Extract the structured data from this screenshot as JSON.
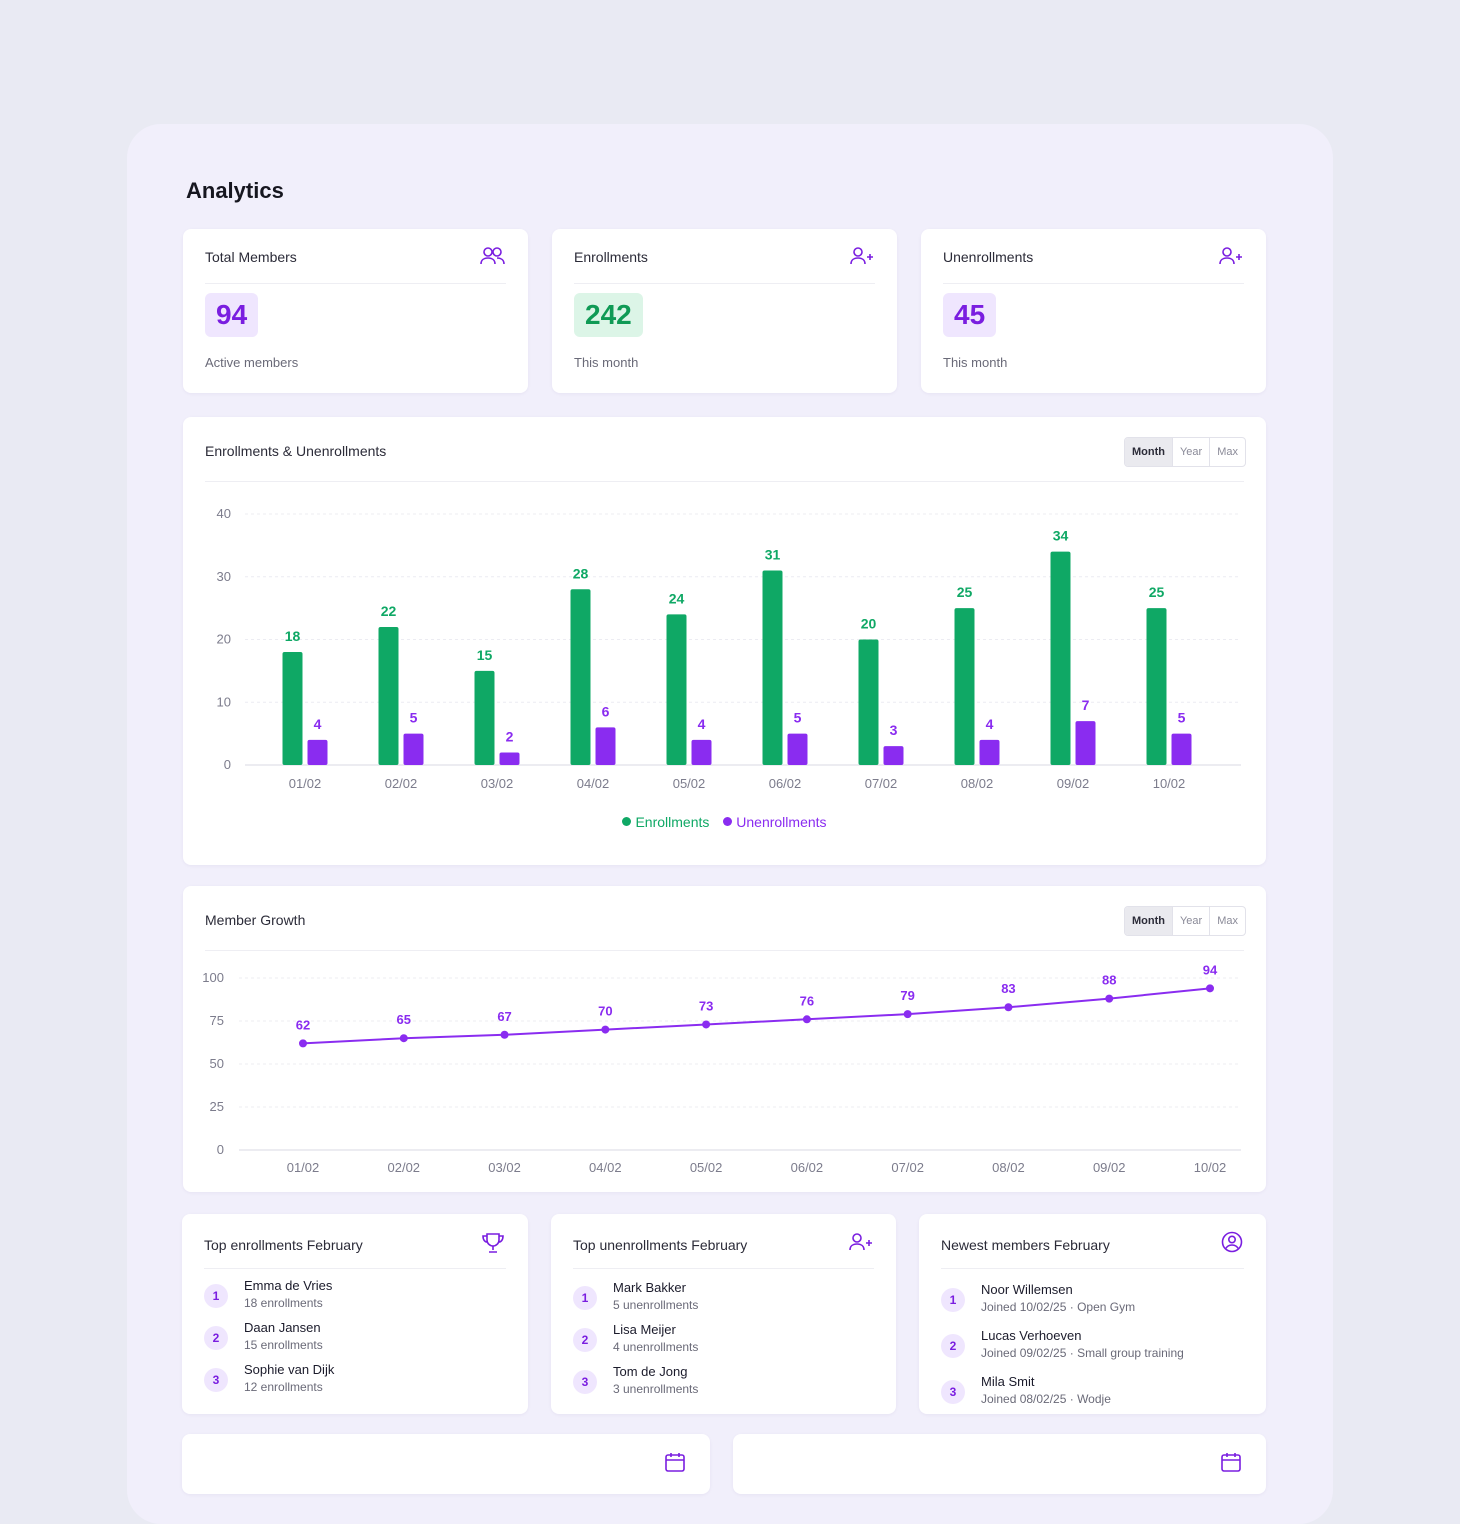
{
  "page": {
    "title": "Analytics"
  },
  "stats": [
    {
      "label": "Total Members",
      "value": "94",
      "sub": "Active members",
      "icon": "users-icon"
    },
    {
      "label": "Enrollments",
      "value": "242",
      "sub": "This month",
      "icon": "user-plus-icon"
    },
    {
      "label": "Unenrollments",
      "value": "45",
      "sub": "This month",
      "icon": "user-plus-icon"
    }
  ],
  "range_toggle": {
    "month": "Month",
    "year": "Year",
    "max": "Max"
  },
  "enroll_chart": {
    "title": "Enrollments & Unenrollments",
    "legend": {
      "enrollments": "Enrollments",
      "unenrollments": "Unenrollments"
    }
  },
  "growth_chart": {
    "title": "Member Growth"
  },
  "colors": {
    "accent": "#7a1ee0",
    "green": "#0fa865",
    "purple": "#8a2cf0",
    "background": "#e9eaf3"
  },
  "chart_data": [
    {
      "type": "bar",
      "title": "Enrollments & Unenrollments",
      "categories": [
        "01/02",
        "02/02",
        "03/02",
        "04/02",
        "05/02",
        "06/02",
        "07/02",
        "08/02",
        "09/02",
        "10/02"
      ],
      "series": [
        {
          "name": "Enrollments",
          "values": [
            18,
            22,
            15,
            28,
            24,
            31,
            20,
            25,
            34,
            25
          ],
          "color": "#0fa865"
        },
        {
          "name": "Unenrollments",
          "values": [
            4,
            5,
            2,
            6,
            4,
            5,
            3,
            4,
            7,
            5
          ],
          "color": "#8a2cf0"
        }
      ],
      "ylim": [
        0,
        40
      ],
      "yticks": [
        0,
        10,
        20,
        30,
        40
      ],
      "grid": true,
      "legend": "bottom-center"
    },
    {
      "type": "line",
      "title": "Member Growth",
      "categories": [
        "01/02",
        "02/02",
        "03/02",
        "04/02",
        "05/02",
        "06/02",
        "07/02",
        "08/02",
        "09/02",
        "10/02"
      ],
      "series": [
        {
          "values": [
            62,
            65,
            67,
            70,
            73,
            76,
            79,
            83,
            88,
            94
          ],
          "color": "#8a2cf0"
        }
      ],
      "ylim": [
        0,
        100
      ],
      "yticks": [
        0,
        25,
        50,
        75,
        100
      ],
      "grid": true
    }
  ],
  "lists": {
    "top_enrollments": {
      "title": "Top enrollments February",
      "items": [
        {
          "rank": "1",
          "name": "Emma de Vries",
          "sub": "18 enrollments"
        },
        {
          "rank": "2",
          "name": "Daan Jansen",
          "sub": "15 enrollments"
        },
        {
          "rank": "3",
          "name": "Sophie van Dijk",
          "sub": "12 enrollments"
        }
      ]
    },
    "top_unenrollments": {
      "title": "Top unenrollments February",
      "items": [
        {
          "rank": "1",
          "name": "Mark Bakker",
          "sub": "5 unenrollments"
        },
        {
          "rank": "2",
          "name": "Lisa Meijer",
          "sub": "4 unenrollments"
        },
        {
          "rank": "3",
          "name": "Tom de Jong",
          "sub": "3 unenrollments"
        }
      ]
    },
    "newest_members": {
      "title": "Newest members February",
      "items": [
        {
          "rank": "1",
          "name": "Noor Willemsen",
          "sub": "Joined 10/02/25 · Open Gym"
        },
        {
          "rank": "2",
          "name": "Lucas Verhoeven",
          "sub": "Joined 09/02/25 · Small group training"
        },
        {
          "rank": "3",
          "name": "Mila Smit",
          "sub": "Joined 08/02/25 · Wodje"
        }
      ]
    }
  }
}
